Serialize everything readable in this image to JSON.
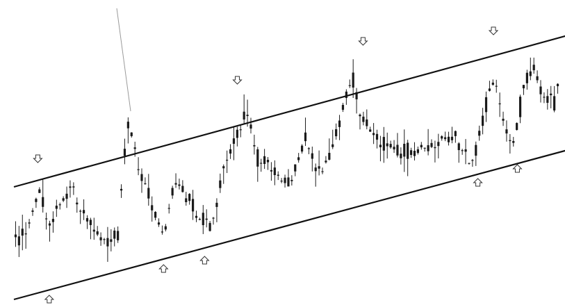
{
  "chart_data": {
    "type": "candlestick",
    "title": "",
    "xlabel": "",
    "ylabel": "",
    "grid": false,
    "legend": "none",
    "ylim": [
      0,
      439
    ],
    "colors": {
      "candles": "#1a1a1a",
      "channel": "#111111",
      "markers": "#333333",
      "background": "#ffffff"
    },
    "channel_lines": [
      {
        "name": "upper",
        "from": [
          0,
          170
        ],
        "to": [
          110,
          395
        ]
      },
      {
        "name": "lower",
        "from": [
          0,
          8
        ],
        "to": [
          110,
          230
        ]
      }
    ],
    "markers": [
      {
        "type": "down-arrow-icon",
        "x": 4.6,
        "y": 211
      },
      {
        "type": "down-arrow-icon",
        "x": 43.0,
        "y": 324
      },
      {
        "type": "down-arrow-icon",
        "x": 67.2,
        "y": 380
      },
      {
        "type": "down-arrow-icon",
        "x": 92.3,
        "y": 395
      },
      {
        "type": "up-arrow-icon",
        "x": 6.8,
        "y": 8
      },
      {
        "type": "up-arrow-icon",
        "x": 28.8,
        "y": 52
      },
      {
        "type": "up-arrow-icon",
        "x": 36.7,
        "y": 64
      },
      {
        "type": "up-arrow-icon",
        "x": 89.3,
        "y": 176
      },
      {
        "type": "up-arrow-icon",
        "x": 96.9,
        "y": 196
      }
    ],
    "anchors": [
      [
        0,
        85
      ],
      [
        3,
        120
      ],
      [
        5,
        165
      ],
      [
        7,
        115
      ],
      [
        9,
        145
      ],
      [
        11,
        180
      ],
      [
        14,
        120
      ],
      [
        17,
        95
      ],
      [
        20,
        102
      ],
      [
        21,
        200
      ],
      [
        22,
        260
      ],
      [
        23,
        240
      ],
      [
        24,
        200
      ],
      [
        26,
        155
      ],
      [
        28,
        110
      ],
      [
        29,
        100
      ],
      [
        31,
        185
      ],
      [
        33,
        160
      ],
      [
        35,
        135
      ],
      [
        38,
        110
      ],
      [
        40,
        185
      ],
      [
        42,
        230
      ],
      [
        45,
        280
      ],
      [
        47,
        210
      ],
      [
        49,
        205
      ],
      [
        51,
        180
      ],
      [
        53,
        170
      ],
      [
        56,
        240
      ],
      [
        59,
        190
      ],
      [
        61,
        220
      ],
      [
        64,
        300
      ],
      [
        65,
        330
      ],
      [
        67,
        270
      ],
      [
        70,
        240
      ],
      [
        73,
        225
      ],
      [
        76,
        220
      ],
      [
        79,
        225
      ],
      [
        82,
        235
      ],
      [
        85,
        245
      ],
      [
        87,
        210
      ],
      [
        88,
        190
      ],
      [
        90,
        260
      ],
      [
        92,
        320
      ],
      [
        93,
        320
      ],
      [
        94,
        280
      ],
      [
        96,
        220
      ],
      [
        98,
        310
      ],
      [
        100,
        340
      ],
      [
        102,
        300
      ],
      [
        104,
        290
      ],
      [
        105,
        320
      ]
    ],
    "candle_count": 160,
    "seed": 42
  }
}
